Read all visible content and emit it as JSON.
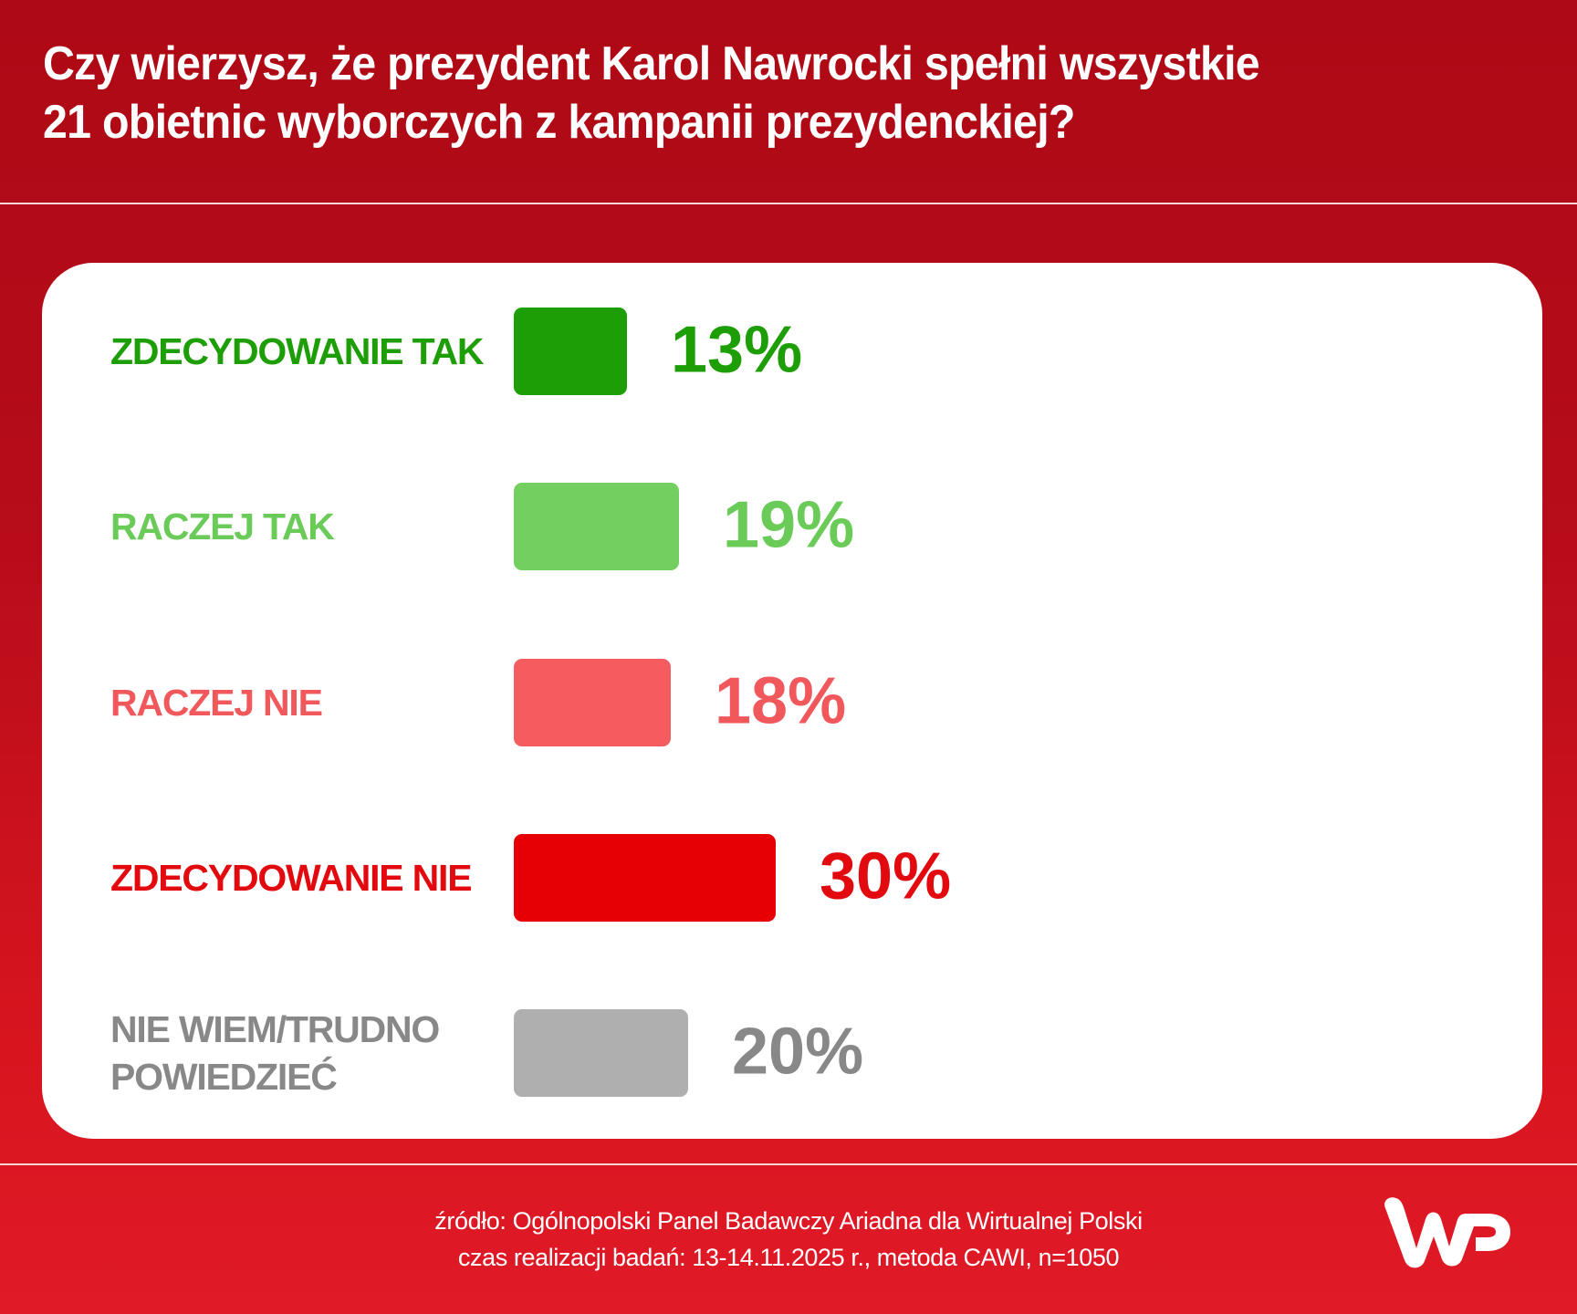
{
  "title": {
    "line1": "Czy wierzysz, że prezydent Karol Nawrocki spełni wszystkie",
    "line2": "21 obietnic wyborczych z kampanii prezydenckiej?"
  },
  "chart_data": {
    "type": "bar",
    "orientation": "horizontal",
    "title": "Czy wierzysz, że prezydent Karol Nawrocki spełni wszystkie 21 obietnic wyborczych z kampanii prezydenckiej?",
    "categories": [
      "ZDECYDOWANIE TAK",
      "RACZEJ TAK",
      "RACZEJ NIE",
      "ZDECYDOWANIE NIE",
      "NIE WIEM/TRUDNO POWIEDZIEĆ"
    ],
    "values": [
      13,
      19,
      18,
      30,
      20
    ],
    "unit": "%",
    "colors": [
      "#1e9e06",
      "#72cf60",
      "#f45c5f",
      "#e60006",
      "#afafaf"
    ],
    "xlabel": "",
    "ylabel": "",
    "grid": false,
    "legend": "none"
  },
  "rows": [
    {
      "label_lines": [
        "ZDECYDOWANIE TAK"
      ],
      "value_text": "13%",
      "value": 13,
      "bar_color": "#1e9e06",
      "text_color": "#1e9e06"
    },
    {
      "label_lines": [
        "RACZEJ TAK"
      ],
      "value_text": "19%",
      "value": 19,
      "bar_color": "#72cf60",
      "text_color": "#6acb58"
    },
    {
      "label_lines": [
        "RACZEJ NIE"
      ],
      "value_text": "18%",
      "value": 18,
      "bar_color": "#f45c5f",
      "text_color": "#f0585c"
    },
    {
      "label_lines": [
        "ZDECYDOWANIE NIE"
      ],
      "value_text": "30%",
      "value": 30,
      "bar_color": "#e60006",
      "text_color": "#e20a0e"
    },
    {
      "label_lines": [
        "NIE WIEM/TRUDNO",
        "POWIEDZIEĆ"
      ],
      "value_text": "20%",
      "value": 20,
      "bar_color": "#afafaf",
      "text_color": "#888888"
    }
  ],
  "footer": {
    "source": "źródło: Ogólnopolski Panel Badawczy Ariadna dla Wirtualnej Polski",
    "method": "czas realizacji badań: 13-14.11.2025 r., metoda CAWI, n=1050"
  },
  "logo": {
    "name": "WP",
    "color": "#ffffff"
  },
  "colors": {
    "background_top": "#ae0916",
    "background_bottom": "#e01a27",
    "card": "#ffffff"
  }
}
